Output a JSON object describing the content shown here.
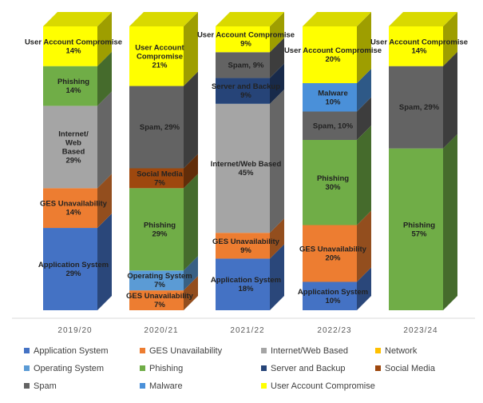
{
  "chart_data": {
    "type": "bar",
    "stacked": true,
    "style": "3d-column-100-percent",
    "title": "",
    "xlabel": "",
    "ylabel": "",
    "ylim": [
      0,
      100
    ],
    "categories": [
      "2019/20",
      "2020/21",
      "2021/22",
      "2022/23",
      "2023/24"
    ],
    "series": [
      {
        "name": "Application System",
        "color": "#4472c4",
        "values": [
          29,
          0,
          18,
          10,
          0
        ]
      },
      {
        "name": "GES Unavailability",
        "color": "#ed7d31",
        "values": [
          14,
          7,
          9,
          20,
          0
        ]
      },
      {
        "name": "Operating System",
        "color": "#5b9bd5",
        "values": [
          0,
          7,
          0,
          0,
          0
        ]
      },
      {
        "name": "Internet/Web Based",
        "color": "#a5a5a5",
        "values": [
          29,
          0,
          45,
          0,
          0
        ]
      },
      {
        "name": "Phishing",
        "color": "#70ad47",
        "values": [
          14,
          29,
          0,
          30,
          57
        ]
      },
      {
        "name": "Social Media",
        "color": "#9e480e",
        "values": [
          0,
          7,
          0,
          0,
          0
        ]
      },
      {
        "name": "Server and Backup",
        "color": "#264478",
        "values": [
          0,
          0,
          9,
          0,
          0
        ]
      },
      {
        "name": "Spam",
        "color": "#636363",
        "values": [
          0,
          29,
          9,
          10,
          29
        ]
      },
      {
        "name": "Malware",
        "color": "#4a90d9",
        "values": [
          0,
          0,
          0,
          10,
          0
        ]
      },
      {
        "name": "Network",
        "color": "#ffc000",
        "values": [
          0,
          0,
          0,
          0,
          0
        ]
      },
      {
        "name": "User Account Compromise",
        "color": "#ffff00",
        "values": [
          14,
          21,
          9,
          20,
          14
        ]
      }
    ],
    "data_labels": [
      [
        {
          "series": "Application System",
          "lines": [
            "Application System",
            "29%"
          ]
        },
        {
          "series": "GES Unavailability",
          "lines": [
            "GES Unavailability",
            "14%"
          ]
        },
        {
          "series": "Internet/Web Based",
          "lines": [
            "Internet/",
            "Web",
            "Based",
            "29%"
          ]
        },
        {
          "series": "Phishing",
          "lines": [
            "Phishing",
            "14%"
          ]
        },
        {
          "series": "User Account Compromise",
          "lines": [
            "User Account Compromise",
            "14%"
          ]
        }
      ],
      [
        {
          "series": "GES Unavailability",
          "lines": [
            "GES Unavailability",
            "7%"
          ]
        },
        {
          "series": "Operating System",
          "lines": [
            "Operating System",
            "7%"
          ]
        },
        {
          "series": "Phishing",
          "lines": [
            "Phishing",
            "29%"
          ]
        },
        {
          "series": "Social Media",
          "lines": [
            "Social Media",
            "7%"
          ]
        },
        {
          "series": "Spam",
          "lines": [
            "Spam, 29%"
          ]
        },
        {
          "series": "User Account Compromise",
          "lines": [
            "User Account",
            "Compromise",
            "21%"
          ]
        }
      ],
      [
        {
          "series": "Application System",
          "lines": [
            "Application System",
            "18%"
          ]
        },
        {
          "series": "GES Unavailability",
          "lines": [
            "GES Unavailability",
            "9%"
          ]
        },
        {
          "series": "Internet/Web Based",
          "lines": [
            "Internet/Web Based",
            "45%"
          ]
        },
        {
          "series": "Server and Backup",
          "lines": [
            "Server and Backup",
            "9%"
          ]
        },
        {
          "series": "Spam",
          "lines": [
            "Spam, 9%"
          ]
        },
        {
          "series": "User Account Compromise",
          "lines": [
            "User Account Compromise",
            "9%"
          ]
        }
      ],
      [
        {
          "series": "Application System",
          "lines": [
            "Application System",
            "10%"
          ]
        },
        {
          "series": "GES Unavailability",
          "lines": [
            "GES Unavailability",
            "20%"
          ]
        },
        {
          "series": "Phishing",
          "lines": [
            "Phishing",
            "30%"
          ]
        },
        {
          "series": "Spam",
          "lines": [
            "Spam, 10%"
          ]
        },
        {
          "series": "Malware",
          "lines": [
            "Malware",
            "10%"
          ]
        },
        {
          "series": "User Account Compromise",
          "lines": [
            "User Account Compromise",
            "20%"
          ]
        }
      ],
      [
        {
          "series": "Phishing",
          "lines": [
            "Phishing",
            "57%"
          ]
        },
        {
          "series": "Spam",
          "lines": [
            "Spam, 29%"
          ]
        },
        {
          "series": "User Account Compromise",
          "lines": [
            "User Account Compromise",
            "14%"
          ]
        }
      ]
    ],
    "legend": {
      "placement": "bottom",
      "items": [
        {
          "label": "Application System",
          "color": "#4472c4"
        },
        {
          "label": "GES Unavailability",
          "color": "#ed7d31"
        },
        {
          "label": "Internet/Web Based",
          "color": "#a5a5a5"
        },
        {
          "label": "Network",
          "color": "#ffc000"
        },
        {
          "label": "Operating System",
          "color": "#5b9bd5"
        },
        {
          "label": "Phishing",
          "color": "#70ad47"
        },
        {
          "label": "Server and Backup",
          "color": "#264478"
        },
        {
          "label": "Social Media",
          "color": "#9e480e"
        },
        {
          "label": "Spam",
          "color": "#636363"
        },
        {
          "label": "Malware",
          "color": "#4a90d9"
        },
        {
          "label": "User Account Compromise",
          "color": "#ffff00"
        }
      ]
    }
  }
}
